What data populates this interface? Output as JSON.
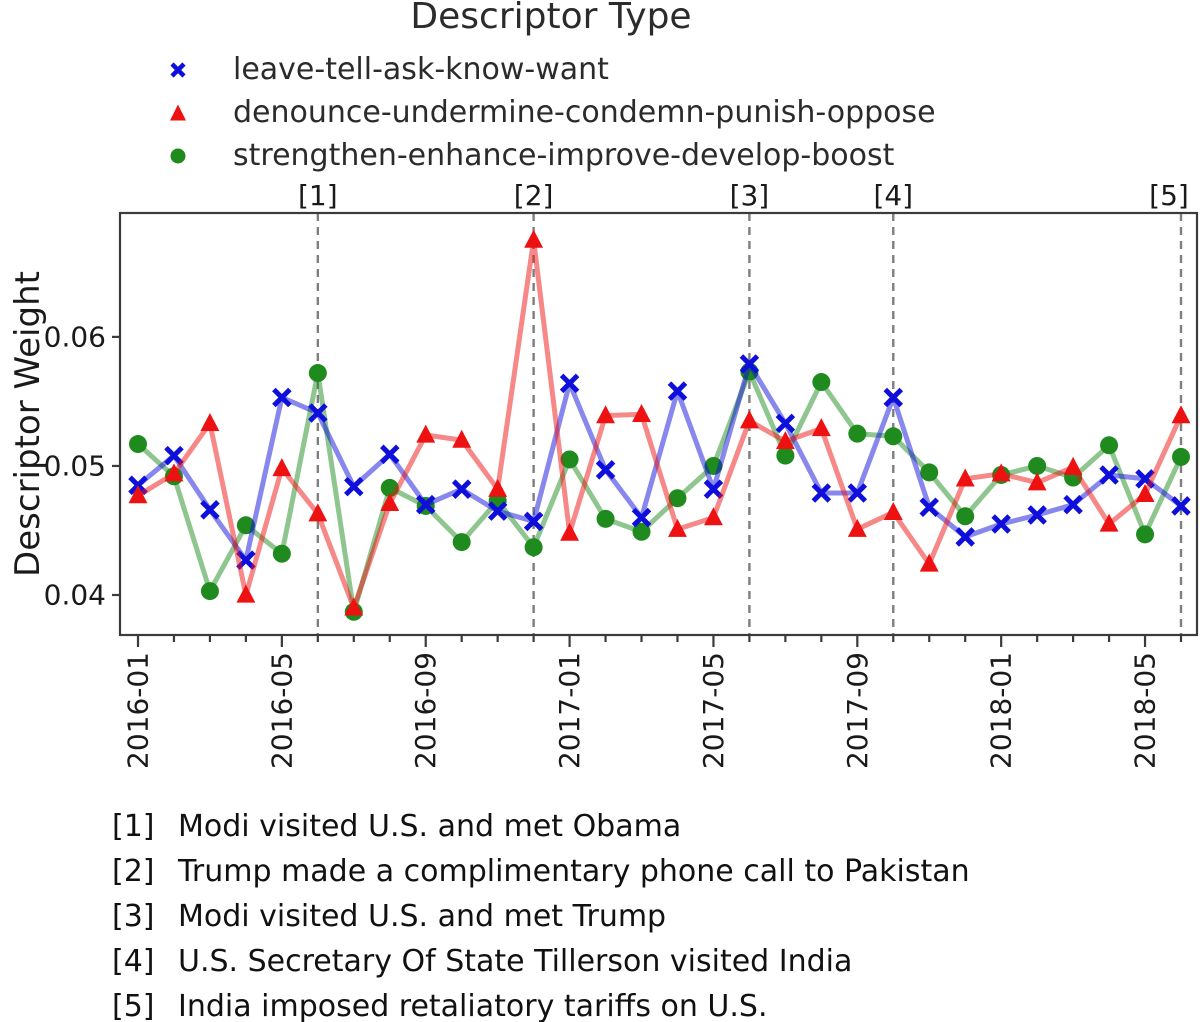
{
  "chart_data": {
    "type": "line",
    "title": "Descriptor Type",
    "ylabel": "Descriptor Weight",
    "xlabel": "",
    "ylim": [
      0.0369,
      0.0696
    ],
    "y_ticks": [
      0.04,
      0.05,
      0.06
    ],
    "y_tick_labels": [
      "0.04",
      "0.05",
      "0.06"
    ],
    "x_major_tick_every": 4,
    "grid": false,
    "legend_position": "top-left",
    "categories": [
      "2016-01",
      "2016-02",
      "2016-03",
      "2016-04",
      "2016-05",
      "2016-06",
      "2016-07",
      "2016-08",
      "2016-09",
      "2016-10",
      "2016-11",
      "2016-12",
      "2017-01",
      "2017-02",
      "2017-03",
      "2017-04",
      "2017-05",
      "2017-06",
      "2017-07",
      "2017-08",
      "2017-09",
      "2017-10",
      "2017-11",
      "2017-12",
      "2018-01",
      "2018-02",
      "2018-03",
      "2018-04",
      "2018-05",
      "2018-06"
    ],
    "series": [
      {
        "name": "leave-tell-ask-know-want",
        "marker": "x",
        "color": "#0f0fdc",
        "values": [
          0.0485,
          0.0508,
          0.0466,
          0.0427,
          0.0553,
          0.0541,
          0.0484,
          0.0509,
          0.047,
          0.0482,
          0.0465,
          0.0457,
          0.0564,
          0.0497,
          0.046,
          0.0558,
          0.0482,
          0.0579,
          0.0533,
          0.0479,
          0.0479,
          0.0553,
          0.0468,
          0.0445,
          0.0455,
          0.0462,
          0.047,
          0.0493,
          0.049,
          0.0469
        ]
      },
      {
        "name": "denounce-undermine-condemn-punish-oppose",
        "marker": "triangle",
        "color": "#ee1111",
        "values": [
          0.0477,
          0.0494,
          0.0533,
          0.04,
          0.0498,
          0.0463,
          0.039,
          0.0471,
          0.0524,
          0.052,
          0.0482,
          0.0675,
          0.0448,
          0.0539,
          0.054,
          0.0451,
          0.046,
          0.0535,
          0.0519,
          0.0529,
          0.0451,
          0.0464,
          0.0424,
          0.049,
          0.0494,
          0.0487,
          0.0499,
          0.0455,
          0.0478,
          0.0539
        ]
      },
      {
        "name": "strengthen-enhance-improve-develop-boost",
        "marker": "circle",
        "color": "#1f8b1f",
        "values": [
          0.0517,
          0.0492,
          0.0403,
          0.0454,
          0.0432,
          0.0572,
          0.0387,
          0.0483,
          0.0469,
          0.0441,
          0.0473,
          0.0437,
          0.0505,
          0.0459,
          0.0449,
          0.0475,
          0.05,
          0.0573,
          0.0508,
          0.0565,
          0.0525,
          0.0523,
          0.0495,
          0.0461,
          0.0493,
          0.05,
          0.0491,
          0.0516,
          0.0447,
          0.0507
        ]
      }
    ],
    "draw_order": [
      2,
      0,
      1
    ],
    "line_opacity": 0.5,
    "events": [
      {
        "label": "[1]",
        "month": "2016-06",
        "annotation": "Modi visited U.S. and met Obama"
      },
      {
        "label": "[2]",
        "month": "2016-12",
        "annotation": "Trump made a complimentary phone call to Pakistan"
      },
      {
        "label": "[3]",
        "month": "2017-06",
        "annotation": "Modi visited U.S. and met Trump"
      },
      {
        "label": "[4]",
        "month": "2017-10",
        "annotation": "U.S. Secretary Of State Tillerson visited India"
      },
      {
        "label": "[5]",
        "month": "2018-06",
        "annotation": "India imposed retaliatory tariffs on U.S."
      }
    ],
    "colors": {
      "event_line": "#7f7f7f",
      "axis": "#3b3b3b",
      "text": "#1a1a1a"
    }
  }
}
